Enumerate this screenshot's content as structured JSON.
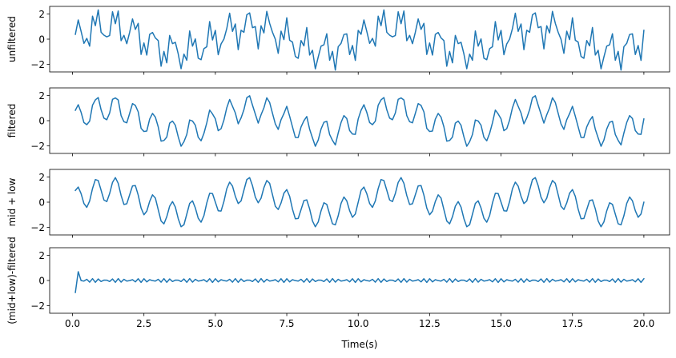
{
  "chart_data": {
    "type": "line",
    "xlabel": "Time(s)",
    "xlim": [
      -0.8,
      20.9
    ],
    "ylim": [
      -2.6,
      2.6
    ],
    "xticks": [
      0.0,
      2.5,
      5.0,
      7.5,
      10.0,
      12.5,
      15.0,
      17.5,
      20.0
    ],
    "xtick_labels": [
      "0.0",
      "2.5",
      "5.0",
      "7.5",
      "10.0",
      "12.5",
      "15.0",
      "17.5",
      "20.0"
    ],
    "yticks": [
      -2,
      0,
      2
    ],
    "ytick_labels": [
      "−2",
      "0",
      "2"
    ],
    "grid": false,
    "line_color": "#1f77b4",
    "sampling": {
      "x_start": 0.1,
      "x_end": 20.0,
      "step": 0.1
    },
    "panels": [
      {
        "ylabel": "unfiltered",
        "series": [
          {
            "component": "low",
            "amplitude": 1.0,
            "frequency_hz": 0.2,
            "phase": 0.0
          },
          {
            "component": "mid",
            "amplitude": 1.0,
            "frequency_hz": 1.5,
            "phase": 0.0
          },
          {
            "component": "high",
            "amplitude": 0.75,
            "frequency_hz": 4.4,
            "phase": 1.2
          }
        ]
      },
      {
        "ylabel": "filtered",
        "series": [
          {
            "component": "low",
            "amplitude": 1.0,
            "frequency_hz": 0.2,
            "phase": 0.0
          },
          {
            "component": "mid",
            "amplitude": 1.0,
            "frequency_hz": 1.5,
            "phase": 0.0
          },
          {
            "component": "residual",
            "amplitude": 0.15,
            "frequency_hz": 4.4,
            "phase": 1.2
          }
        ]
      },
      {
        "ylabel": "mid + low",
        "series": [
          {
            "component": "low",
            "amplitude": 1.0,
            "frequency_hz": 0.2,
            "phase": 0.0
          },
          {
            "component": "mid",
            "amplitude": 1.0,
            "frequency_hz": 1.5,
            "phase": 0.0
          }
        ]
      },
      {
        "ylabel": "(mid+low)-filtered",
        "start_transient": [
          -0.95,
          0.7
        ],
        "series": [
          {
            "component": "residual",
            "amplitude": 0.15,
            "frequency_hz": 4.4,
            "phase": 1.2
          }
        ]
      }
    ]
  }
}
